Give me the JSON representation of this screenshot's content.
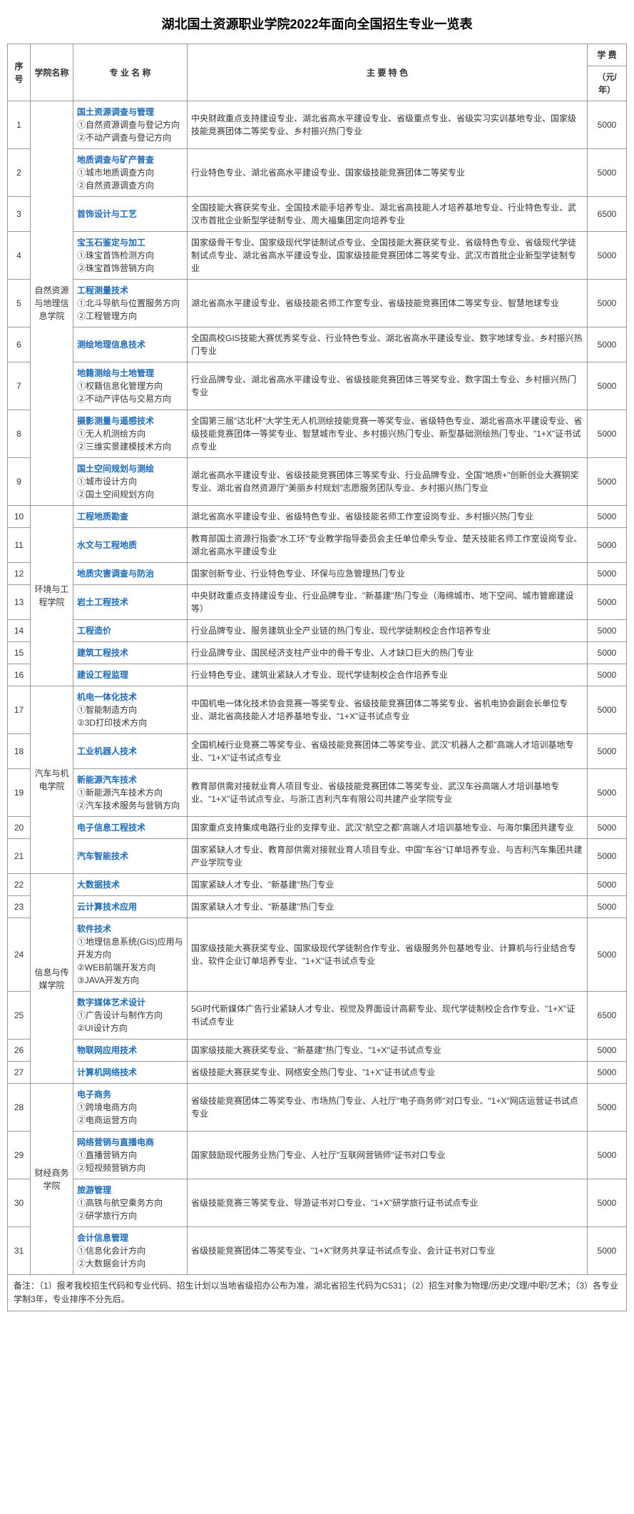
{
  "title": "湖北国土资源职业学院2022年面向全国招生专业一览表",
  "headers": {
    "seq": "序号",
    "dept": "学院名称",
    "major": "专 业 名 称",
    "feature": "主 要 特 色",
    "fee": "学 费",
    "fee_unit": "（元/年）"
  },
  "depts": [
    {
      "name": "自然资源与地理信息学院",
      "rows": [
        {
          "seq": "1",
          "major": "国土资源调查与管理",
          "subs": [
            "①自然资源调查与登记方向",
            "②不动产调查与登记方向"
          ],
          "feature": "中央财政重点支持建设专业、湖北省高水平建设专业、省级重点专业、省级实习实训基地专业、国家级技能竞赛团体二等奖专业、乡村振兴热门专业",
          "fee": "5000"
        },
        {
          "seq": "2",
          "major": "地质调查与矿产普查",
          "subs": [
            "①城市地质调查方向",
            "②自然资源调查方向"
          ],
          "feature": "行业特色专业、湖北省高水平建设专业、国家级技能竞赛团体二等奖专业",
          "fee": "5000"
        },
        {
          "seq": "3",
          "major": "首饰设计与工艺",
          "subs": [],
          "feature": "全国技能大赛获奖专业、全国技术能手培养专业、湖北省高技能人才培养基地专业、行业特色专业、武汉市首批企业新型学徒制专业、周大福集团定向培养专业",
          "fee": "6500"
        },
        {
          "seq": "4",
          "major": "宝玉石鉴定与加工",
          "subs": [
            "①珠宝首饰检测方向",
            "②珠宝首饰营销方向"
          ],
          "feature": "国家级骨干专业、国家级现代学徒制试点专业、全国技能大赛获奖专业、省级特色专业、省级现代学徒制试点专业、湖北省高水平建设专业、国家级技能竞赛团体二等奖专业、武汉市首批企业新型学徒制专业",
          "fee": "5000"
        },
        {
          "seq": "5",
          "major": "工程测量技术",
          "subs": [
            "①北斗导航与位置服务方向",
            "②工程管理方向"
          ],
          "feature": "湖北省高水平建设专业、省级技能名师工作室专业、省级技能竞赛团体二等奖专业、智慧地球专业",
          "fee": "5000"
        },
        {
          "seq": "6",
          "major": "测绘地理信息技术",
          "subs": [],
          "feature": "全国高校GIS技能大赛优秀奖专业、行业特色专业、湖北省高水平建设专业、数字地球专业、乡村振兴热门专业",
          "fee": "5000"
        },
        {
          "seq": "7",
          "major": "地籍测绘与土地管理",
          "subs": [
            "①权籍信息化管理方向",
            "②不动产评估与交易方向"
          ],
          "feature": "行业品牌专业、湖北省高水平建设专业、省级技能竞赛团体三等奖专业、数字国土专业、乡村振兴热门专业",
          "fee": "5000"
        },
        {
          "seq": "8",
          "major": "摄影测量与遥感技术",
          "subs": [
            "①无人机测绘方向",
            "②三维实景建模技术方向"
          ],
          "feature": "全国第三届\"达北杯\"大学生无人机测绘技能竞赛一等奖专业、省级特色专业、湖北省高水平建设专业、省级技能竞赛团体一等奖专业、智慧城市专业、乡村振兴热门专业、新型基础测绘热门专业、\"1+X\"证书试点专业",
          "fee": "5000"
        },
        {
          "seq": "9",
          "major": "国土空间规划与测绘",
          "subs": [
            "①城市设计方向",
            "②国土空间规划方向"
          ],
          "feature": "湖北省高水平建设专业、省级技能竞赛团体三等奖专业、行业品牌专业、全国\"地质+\"创新创业大赛铜奖专业、湖北省自然资源厅\"美丽乡村规划\"志愿服务团队专业、乡村振兴热门专业",
          "fee": "5000"
        }
      ]
    },
    {
      "name": "环境与工程学院",
      "rows": [
        {
          "seq": "10",
          "major": "工程地质勘查",
          "subs": [],
          "feature": "湖北省高水平建设专业、省级特色专业、省级技能名师工作室设岗专业、乡村振兴热门专业",
          "fee": "5000"
        },
        {
          "seq": "11",
          "major": "水文与工程地质",
          "subs": [],
          "feature": "教育部国土资源行指委\"水工环\"专业教学指导委员会主任单位牵头专业、楚天技能名师工作室设岗专业、湖北省高水平建设专业",
          "fee": "5000"
        },
        {
          "seq": "12",
          "major": "地质灾害调查与防治",
          "subs": [],
          "feature": "国家创新专业、行业特色专业、环保与应急管理热门专业",
          "fee": "5000"
        },
        {
          "seq": "13",
          "major": "岩土工程技术",
          "subs": [],
          "feature": "中央财政重点支持建设专业、行业品牌专业、\"新基建\"热门专业（海绵城市、地下空间、城市管廊建设等）",
          "fee": "5000"
        },
        {
          "seq": "14",
          "major": "工程造价",
          "subs": [],
          "feature": "行业品牌专业、服务建筑业全产业链的热门专业、现代学徒制校企合作培养专业",
          "fee": "5000"
        },
        {
          "seq": "15",
          "major": "建筑工程技术",
          "subs": [],
          "feature": "行业品牌专业、国民经济支柱产业中的骨干专业、人才缺口巨大的热门专业",
          "fee": "5000"
        },
        {
          "seq": "16",
          "major": "建设工程监理",
          "subs": [],
          "feature": "行业特色专业、建筑业紧缺人才专业、现代学徒制校企合作培养专业",
          "fee": "5000"
        }
      ]
    },
    {
      "name": "汽车与机电学院",
      "rows": [
        {
          "seq": "17",
          "major": "机电一体化技术",
          "subs": [
            "①智能制造方向",
            "②3D打印技术方向"
          ],
          "feature": "中国机电一体化技术协会竞赛一等奖专业、省级技能竞赛团体二等奖专业、省机电协会副会长单位专业、湖北省高技能人才培养基地专业、\"1+X\"证书试点专业",
          "fee": "5000"
        },
        {
          "seq": "18",
          "major": "工业机器人技术",
          "subs": [],
          "feature": "全国机械行业竞赛二等奖专业、省级技能竞赛团体二等奖专业、武汉\"机器人之都\"高端人才培训基地专业、\"1+X\"证书试点专业",
          "fee": "5000"
        },
        {
          "seq": "19",
          "major": "新能源汽车技术",
          "subs": [
            "①新能源汽车技术方向",
            "②汽车技术服务与营销方向"
          ],
          "feature": "教育部供需对接就业育人项目专业、省级技能竞赛团体二等奖专业、武汉车谷高端人才培训基地专业、\"1+X\"证书试点专业、与浙江吉利汽车有限公司共建产业学院专业",
          "fee": "5000"
        },
        {
          "seq": "20",
          "major": "电子信息工程技术",
          "subs": [],
          "feature": "国家重点支持集成电路行业的支撑专业、武汉\"航空之都\"高端人才培训基地专业、与海尔集团共建专业",
          "fee": "5000"
        },
        {
          "seq": "21",
          "major": "汽车智能技术",
          "subs": [],
          "feature": "国家紧缺人才专业、教育部供需对接就业育人项目专业、中国\"车谷\"订单培养专业、与吉利汽车集团共建产业学院专业",
          "fee": "5000"
        }
      ]
    },
    {
      "name": "信息与传媒学院",
      "rows": [
        {
          "seq": "22",
          "major": "大数据技术",
          "subs": [],
          "feature": "国家紧缺人才专业、\"新基建\"热门专业",
          "fee": "5000"
        },
        {
          "seq": "23",
          "major": "云计算技术应用",
          "subs": [],
          "feature": "国家紧缺人才专业、\"新基建\"热门专业",
          "fee": "5000"
        },
        {
          "seq": "24",
          "major": "软件技术",
          "subs": [
            "①地理信息系统(GIS)应用与开发方向",
            "②WEB前端开发方向",
            "③JAVA开发方向"
          ],
          "feature": "国家级技能大赛获奖专业、国家级现代学徒制合作专业、省级服务外包基地专业、计算机与行业结合专业、软件企业订单培养专业、\"1+X\"证书试点专业",
          "fee": "5000"
        },
        {
          "seq": "25",
          "major": "数字媒体艺术设计",
          "subs": [
            "①广告设计与制作方向",
            "②UI设计方向"
          ],
          "feature": "5G时代新媒体广告行业紧缺人才专业、视觉及界面设计高薪专业、现代学徒制校企合作专业、\"1+X\"证书试点专业",
          "fee": "6500"
        },
        {
          "seq": "26",
          "major": "物联网应用技术",
          "subs": [],
          "feature": "国家级技能大赛获奖专业、\"新基建\"热门专业、\"1+X\"证书试点专业",
          "fee": "5000"
        },
        {
          "seq": "27",
          "major": "计算机网络技术",
          "subs": [],
          "feature": "省级技能大赛获奖专业、网络安全热门专业、\"1+X\"证书试点专业",
          "fee": "5000"
        }
      ]
    },
    {
      "name": "财经商务学院",
      "rows": [
        {
          "seq": "28",
          "major": "电子商务",
          "subs": [
            "①跨境电商方向",
            "②电商运营方向"
          ],
          "feature": "省级技能竞赛团体二等奖专业、市场热门专业、人社厅\"电子商务师\"对口专业、\"1+X\"网店运营证书试点专业",
          "fee": "5000"
        },
        {
          "seq": "29",
          "major": "网络营销与直播电商",
          "subs": [
            "①直播营销方向",
            "②短视频营销方向"
          ],
          "feature": "国家鼓励现代服务业热门专业、人社厅\"互联网营销师\"证书对口专业",
          "fee": "5000"
        },
        {
          "seq": "30",
          "major": "旅游管理",
          "subs": [
            "①高铁与航空乘务方向",
            "②研学旅行方向"
          ],
          "feature": "省级技能竞赛三等奖专业、导游证书对口专业、\"1+X\"研学旅行证书试点专业",
          "fee": "5000"
        },
        {
          "seq": "31",
          "major": "会计信息管理",
          "subs": [
            "①信息化会计方向",
            "②大数据会计方向"
          ],
          "feature": "省级技能竞赛团体二等奖专业、\"1+X\"财务共享证书试点专业、会计证书对口专业",
          "fee": "5000"
        }
      ]
    }
  ],
  "note": "备注：（1）报考我校招生代码和专业代码、招生计划以当地省级招办公布为准，湖北省招生代码为C531；（2）招生对象为物理/历史/文理/中职/艺术；（3）各专业学制3年，专业排序不分先后。"
}
